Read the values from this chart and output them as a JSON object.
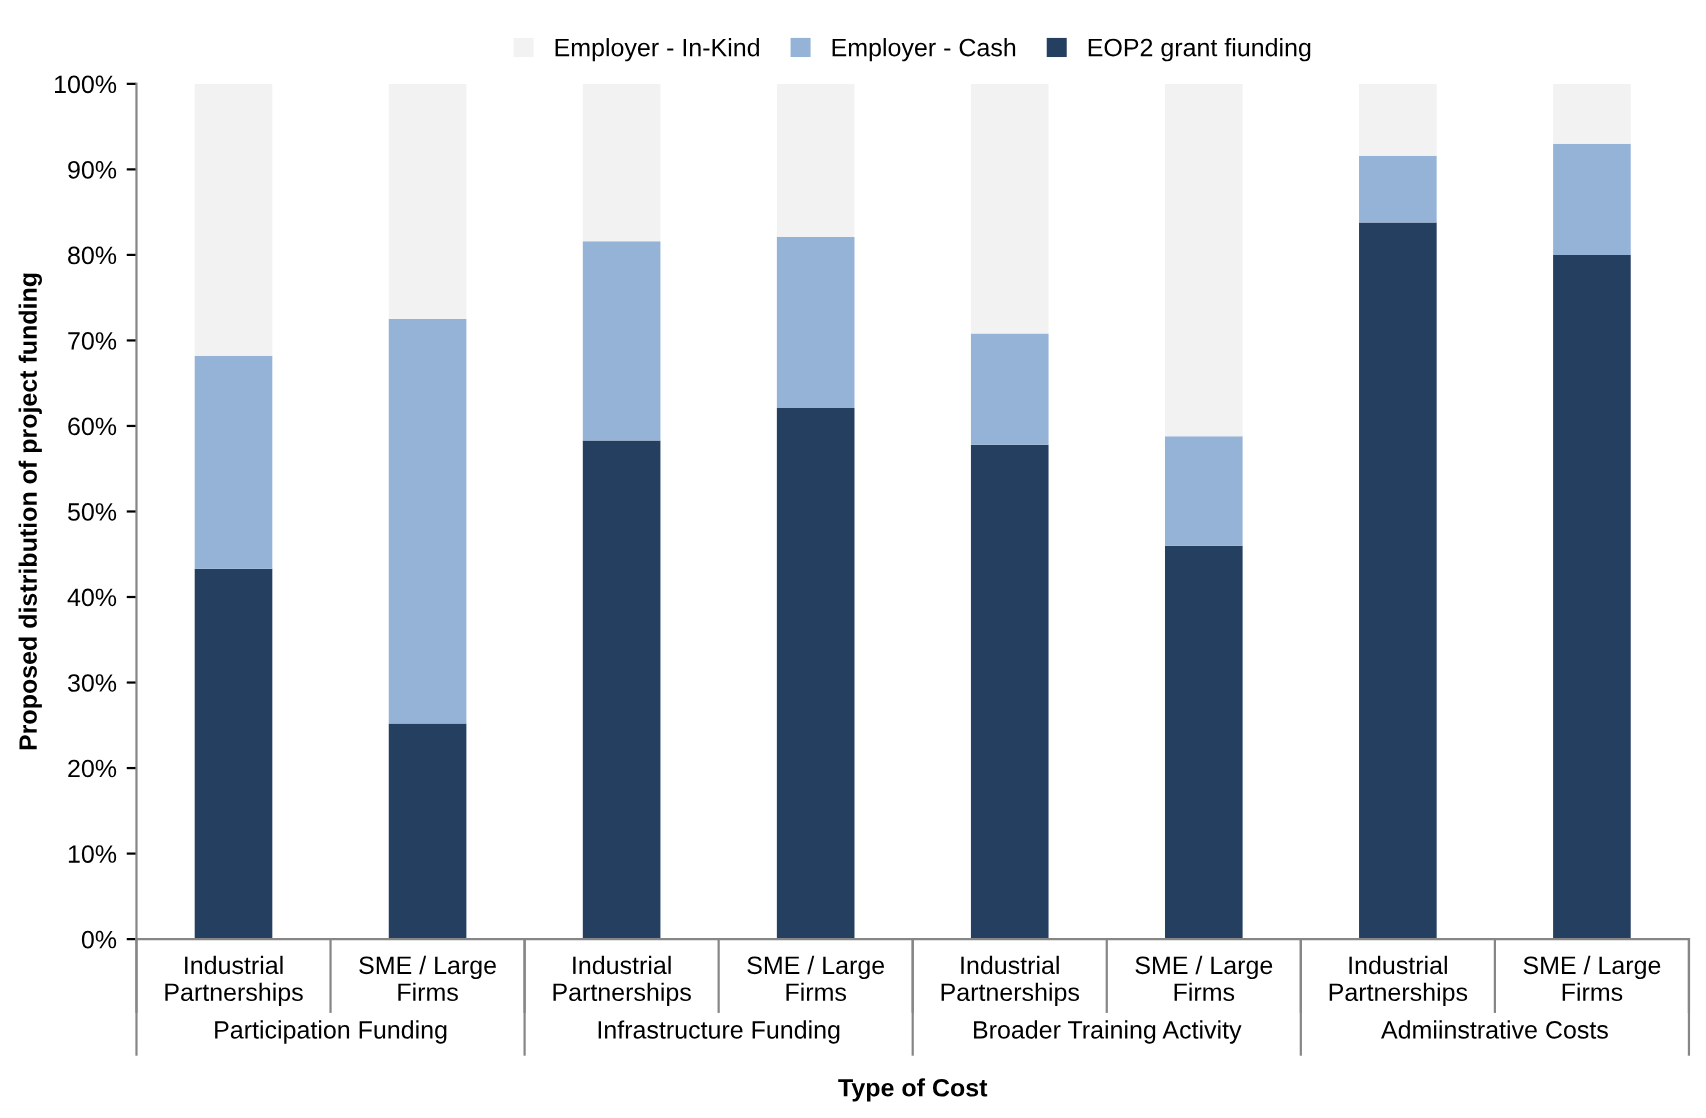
{
  "chart_data": {
    "type": "bar",
    "stacked": true,
    "xlabel": "Type of Cost",
    "ylabel": "Proposed distribution of project funding",
    "categories": [
      "Industrial\nPartnerships",
      "SME / Large\nFirms",
      "Industrial\nPartnerships",
      "SME / Large\nFirms",
      "Industrial\nPartnerships",
      "SME / Large\nFirms",
      "Industrial\nPartnerships",
      "SME / Large\nFirms"
    ],
    "series": [
      {
        "name": "EOP2 grant fiunding",
        "color": "#243f60",
        "values": [
          43.3,
          25.2,
          58.3,
          62.1,
          57.8,
          46.0,
          83.8,
          80.0
        ]
      },
      {
        "name": "Employer - Cash",
        "color": "#95b3d7",
        "values": [
          24.9,
          47.3,
          23.3,
          20.0,
          13.0,
          12.8,
          7.8,
          13.0
        ]
      },
      {
        "name": "Employer - In-Kind",
        "color": "#f2f2f2",
        "values": [
          31.8,
          27.5,
          18.4,
          17.9,
          29.2,
          41.2,
          8.4,
          7.0
        ]
      }
    ],
    "annotations": [
      "Participation Funding",
      "Infrastructure Funding",
      "Broader Training Activity",
      "Admiinstrative Costs"
    ],
    "ylim": [
      0,
      100
    ],
    "yticks": [
      {
        "value": 0,
        "label": "0%"
      },
      {
        "value": 10,
        "label": "10%"
      },
      {
        "value": 20,
        "label": "20%"
      },
      {
        "value": 30,
        "label": "30%"
      },
      {
        "value": 40,
        "label": "40%"
      },
      {
        "value": 50,
        "label": "50%"
      },
      {
        "value": 60,
        "label": "60%"
      },
      {
        "value": 70,
        "label": "70%"
      },
      {
        "value": 80,
        "label": "80%"
      },
      {
        "value": 90,
        "label": "90%"
      },
      {
        "value": 100,
        "label": "100%"
      }
    ],
    "grid": false,
    "legend": "top"
  }
}
